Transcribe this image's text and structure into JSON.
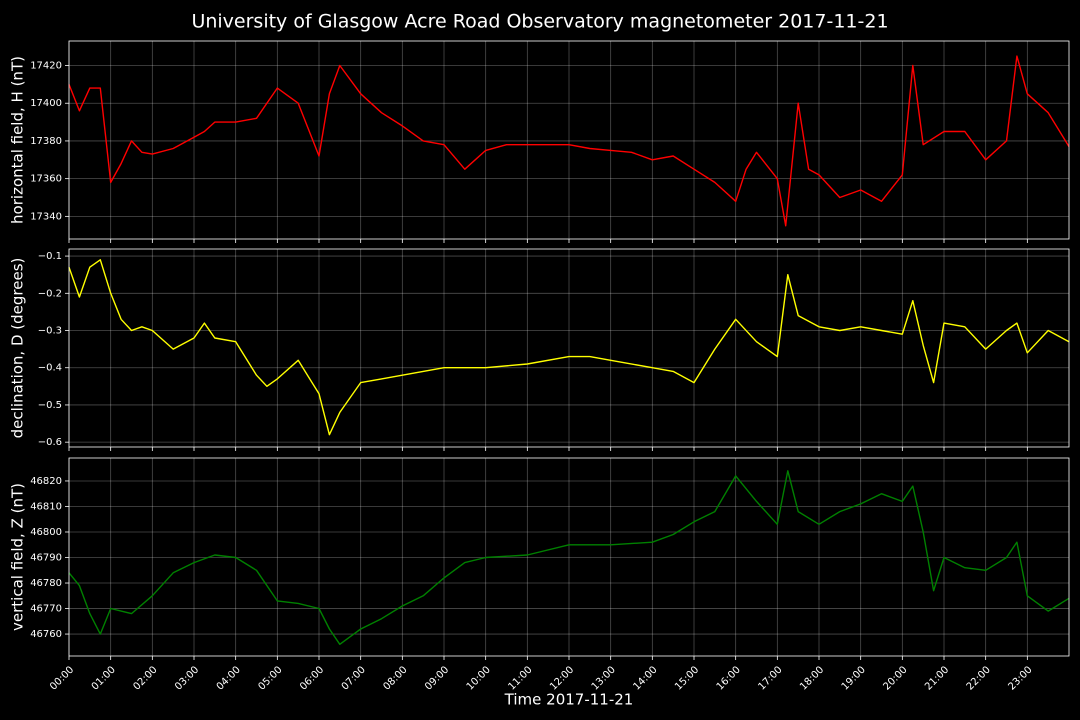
{
  "chart_data": [
    {
      "type": "line",
      "title": "University of Glasgow Acre Road Observatory magnetometer 2017-11-21",
      "ylabel": "horizontal field, H (nT)",
      "color": "#ff0000",
      "grid": true,
      "x": [
        0,
        0.25,
        0.5,
        0.75,
        1,
        1.25,
        1.5,
        1.75,
        2,
        2.5,
        3,
        3.25,
        3.5,
        4,
        4.5,
        5,
        5.5,
        6,
        6.25,
        6.5,
        7,
        7.5,
        8,
        8.5,
        9,
        9.5,
        10,
        10.5,
        11,
        12,
        12.5,
        13,
        13.5,
        14,
        14.5,
        15,
        15.5,
        16,
        16.25,
        16.5,
        17,
        17.2,
        17.5,
        17.75,
        18,
        18.5,
        19,
        19.5,
        20,
        20.25,
        20.5,
        21,
        21.5,
        22,
        22.5,
        22.75,
        23,
        23.5,
        24
      ],
      "values": [
        17410,
        17396,
        17408,
        17408,
        17358,
        17368,
        17380,
        17374,
        17373,
        17376,
        17382,
        17385,
        17390,
        17390,
        17392,
        17408,
        17400,
        17372,
        17405,
        17420,
        17405,
        17395,
        17388,
        17380,
        17378,
        17365,
        17375,
        17378,
        17378,
        17378,
        17376,
        17375,
        17374,
        17370,
        17372,
        17365,
        17358,
        17348,
        17365,
        17374,
        17360,
        17335,
        17400,
        17365,
        17362,
        17350,
        17354,
        17348,
        17362,
        17420,
        17378,
        17385,
        17385,
        17370,
        17380,
        17425,
        17405,
        17395,
        17377
      ],
      "xlim": [
        0,
        24
      ],
      "ylim": [
        17328,
        17433
      ],
      "yticks": [
        17340,
        17360,
        17380,
        17400,
        17420
      ]
    },
    {
      "type": "line",
      "ylabel": "declination, D (degrees)",
      "color": "#ffff00",
      "grid": true,
      "x": [
        0,
        0.25,
        0.5,
        0.75,
        1,
        1.25,
        1.5,
        1.75,
        2,
        2.5,
        3,
        3.25,
        3.5,
        4,
        4.5,
        4.75,
        5,
        5.5,
        6,
        6.25,
        6.5,
        7,
        7.5,
        8,
        9,
        10,
        11,
        12,
        12.5,
        13,
        14,
        14.5,
        15,
        15.5,
        16,
        16.5,
        17,
        17.25,
        17.5,
        18,
        18.5,
        19,
        19.5,
        20,
        20.25,
        20.5,
        20.75,
        21,
        21.5,
        22,
        22.5,
        22.75,
        23,
        23.5,
        24
      ],
      "values": [
        -0.13,
        -0.21,
        -0.13,
        -0.11,
        -0.2,
        -0.27,
        -0.3,
        -0.29,
        -0.3,
        -0.35,
        -0.32,
        -0.28,
        -0.32,
        -0.33,
        -0.42,
        -0.45,
        -0.43,
        -0.38,
        -0.47,
        -0.58,
        -0.52,
        -0.44,
        -0.43,
        -0.42,
        -0.4,
        -0.4,
        -0.39,
        -0.37,
        -0.37,
        -0.38,
        -0.4,
        -0.41,
        -0.44,
        -0.35,
        -0.27,
        -0.33,
        -0.37,
        -0.15,
        -0.26,
        -0.29,
        -0.3,
        -0.29,
        -0.3,
        -0.31,
        -0.22,
        -0.34,
        -0.44,
        -0.28,
        -0.29,
        -0.35,
        -0.3,
        -0.28,
        -0.36,
        -0.3,
        -0.33
      ],
      "xlim": [
        0,
        24
      ],
      "ylim": [
        -0.613,
        -0.081
      ],
      "yticks": [
        {
          "value": -0.6,
          "label": "−0.6"
        },
        {
          "value": -0.5,
          "label": "−0.5"
        },
        {
          "value": -0.4,
          "label": "−0.4"
        },
        {
          "value": -0.3,
          "label": "−0.3"
        },
        {
          "value": -0.2,
          "label": "−0.2"
        },
        {
          "value": -0.1,
          "label": "−0.1"
        }
      ]
    },
    {
      "type": "line",
      "ylabel": "vertical field, Z (nT)",
      "xlabel": "Time 2017-11-21",
      "color": "#008000",
      "grid": true,
      "x": [
        0,
        0.25,
        0.5,
        0.75,
        1,
        1.5,
        2,
        2.5,
        3,
        3.5,
        4,
        4.5,
        5,
        5.5,
        6,
        6.25,
        6.5,
        7,
        7.5,
        8,
        8.5,
        9,
        9.5,
        10,
        11,
        12,
        13,
        14,
        14.5,
        15,
        15.5,
        16,
        16.5,
        17,
        17.25,
        17.5,
        18,
        18.5,
        19,
        19.5,
        20,
        20.25,
        20.5,
        20.75,
        21,
        21.5,
        22,
        22.5,
        22.75,
        23,
        23.5,
        24
      ],
      "values": [
        46784,
        46779,
        46768,
        46760,
        46770,
        46768,
        46775,
        46784,
        46788,
        46791,
        46790,
        46785,
        46773,
        46772,
        46770,
        46762,
        46756,
        46762,
        46766,
        46771,
        46775,
        46782,
        46788,
        46790,
        46791,
        46795,
        46795,
        46796,
        46799,
        46804,
        46808,
        46822,
        46812,
        46803,
        46824,
        46808,
        46803,
        46808,
        46811,
        46815,
        46812,
        46818,
        46800,
        46777,
        46790,
        46786,
        46785,
        46790,
        46796,
        46775,
        46769,
        46774
      ],
      "xlim": [
        0,
        24
      ],
      "ylim": [
        46751.4,
        46829
      ],
      "yticks": [
        46760,
        46770,
        46780,
        46790,
        46800,
        46810,
        46820
      ],
      "xticks": [
        {
          "value": 0,
          "label": "00:00"
        },
        {
          "value": 1,
          "label": "01:00"
        },
        {
          "value": 2,
          "label": "02:00"
        },
        {
          "value": 3,
          "label": "03:00"
        },
        {
          "value": 4,
          "label": "04:00"
        },
        {
          "value": 5,
          "label": "05:00"
        },
        {
          "value": 6,
          "label": "06:00"
        },
        {
          "value": 7,
          "label": "07:00"
        },
        {
          "value": 8,
          "label": "08:00"
        },
        {
          "value": 9,
          "label": "09:00"
        },
        {
          "value": 10,
          "label": "10:00"
        },
        {
          "value": 11,
          "label": "11:00"
        },
        {
          "value": 12,
          "label": "12:00"
        },
        {
          "value": 13,
          "label": "13:00"
        },
        {
          "value": 14,
          "label": "14:00"
        },
        {
          "value": 15,
          "label": "15:00"
        },
        {
          "value": 16,
          "label": "16:00"
        },
        {
          "value": 17,
          "label": "17:00"
        },
        {
          "value": 18,
          "label": "18:00"
        },
        {
          "value": 19,
          "label": "19:00"
        },
        {
          "value": 20,
          "label": "20:00"
        },
        {
          "value": 21,
          "label": "21:00"
        },
        {
          "value": 22,
          "label": "22:00"
        },
        {
          "value": 23,
          "label": "23:00"
        }
      ]
    }
  ]
}
